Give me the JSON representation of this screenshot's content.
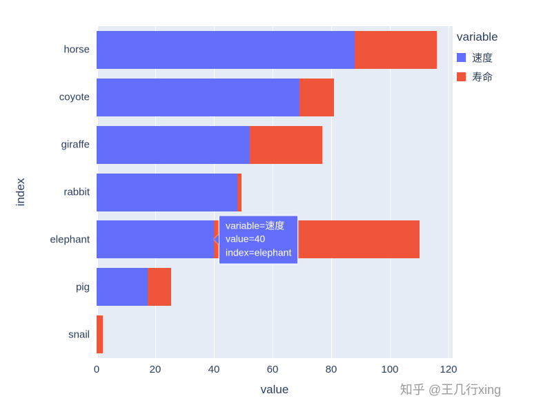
{
  "chart_data": {
    "type": "bar",
    "orientation": "horizontal",
    "stacked": true,
    "title": "",
    "xlabel": "value",
    "ylabel": "index",
    "xlim": [
      0,
      120
    ],
    "xticks": [
      0,
      20,
      40,
      60,
      80,
      100,
      120
    ],
    "grid": true,
    "plot_bgcolor": "#E5ECF6",
    "gridline_color": "#ffffff",
    "text_color": "#2a3f5f",
    "legend_title": "variable",
    "legend_position": "top-right",
    "categories": [
      "horse",
      "coyote",
      "giraffe",
      "rabbit",
      "elephant",
      "pig",
      "snail"
    ],
    "series": [
      {
        "name": "速度",
        "color": "#636EFA",
        "values": [
          88,
          69,
          52,
          48,
          40,
          17.5,
          0.1
        ]
      },
      {
        "name": "寿命",
        "color": "#EF553B",
        "values": [
          28,
          12,
          25,
          1.5,
          70,
          8,
          2
        ]
      }
    ]
  },
  "tooltip": {
    "target_category": "elephant",
    "x_value": 40,
    "background": "#636EFA",
    "lines": [
      "variable=速度",
      "value=40",
      "index=elephant"
    ]
  },
  "watermark": "知乎 @王几行xing"
}
